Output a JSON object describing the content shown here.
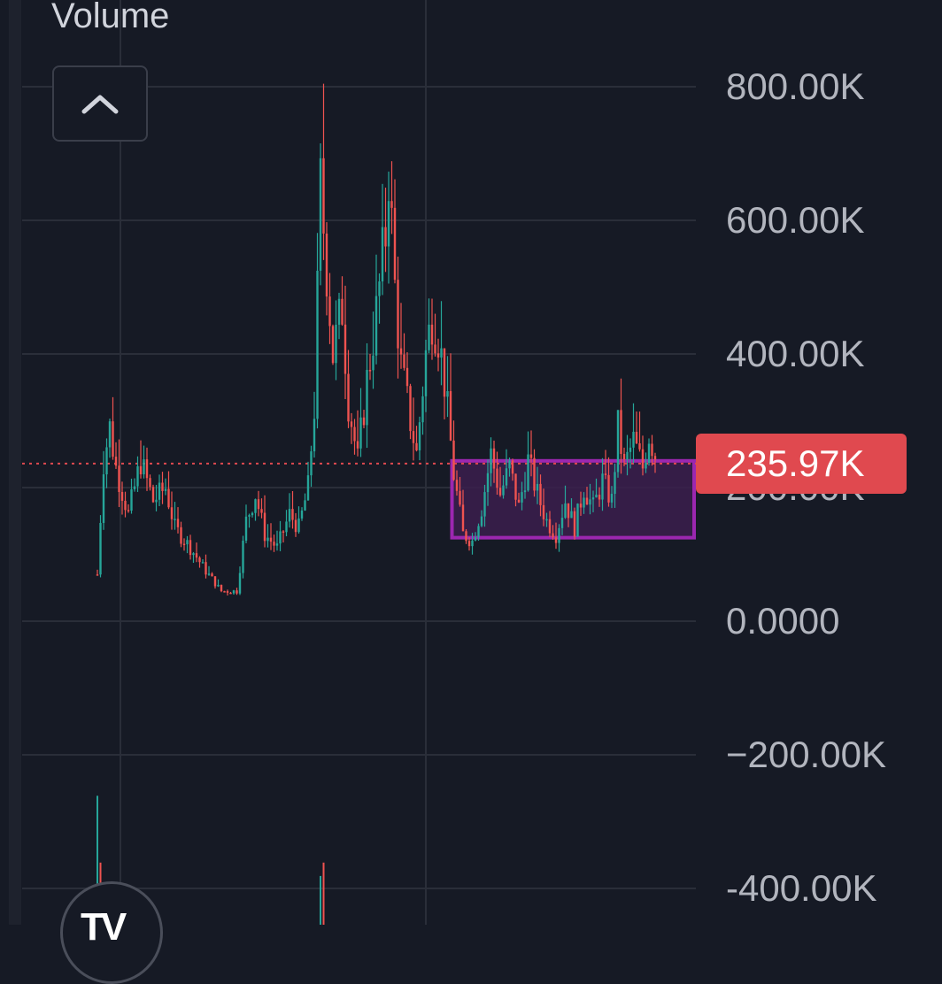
{
  "header": {
    "title": "Volume"
  },
  "controls": {
    "collapse_icon": "chevron-up-icon"
  },
  "last_value_label": "235.97K",
  "logo_text": "TV",
  "colors": {
    "background": "#161a25",
    "grid": "#2a2e39",
    "up": "#26a69a",
    "down": "#ef5350",
    "highlight_fill": "#3b1f4d",
    "highlight_stroke": "#9c27b0",
    "last_value": "#e0494f"
  },
  "chart_data": {
    "type": "candlestick",
    "title": "Volume",
    "ylim": [
      -400000,
      800000
    ],
    "y_ticks": [
      "800.00K",
      "600.00K",
      "400.00K",
      "200.00K",
      "0.0000",
      "−200.00K",
      "-400.00K"
    ],
    "y_tick_values": [
      800000,
      600000,
      400000,
      200000,
      0,
      -200000,
      -400000
    ],
    "last_value": 235970,
    "keypoints": [
      [
        0,
        70000
      ],
      [
        2,
        240000
      ],
      [
        4,
        290000
      ],
      [
        6,
        230000
      ],
      [
        10,
        160000
      ],
      [
        14,
        240000
      ],
      [
        18,
        180000
      ],
      [
        22,
        200000
      ],
      [
        25,
        140000
      ],
      [
        30,
        110000
      ],
      [
        35,
        75000
      ],
      [
        40,
        45000
      ],
      [
        45,
        45000
      ],
      [
        48,
        150000
      ],
      [
        51,
        190000
      ],
      [
        54,
        130000
      ],
      [
        58,
        110000
      ],
      [
        62,
        160000
      ],
      [
        65,
        140000
      ],
      [
        68,
        200000
      ],
      [
        70,
        320000
      ],
      [
        72,
        650000
      ],
      [
        74,
        530000
      ],
      [
        76,
        400000
      ],
      [
        79,
        470000
      ],
      [
        81,
        330000
      ],
      [
        84,
        240000
      ],
      [
        87,
        360000
      ],
      [
        90,
        460000
      ],
      [
        93,
        580000
      ],
      [
        94,
        680000
      ],
      [
        96,
        500000
      ],
      [
        98,
        380000
      ],
      [
        101,
        300000
      ],
      [
        103,
        250000
      ],
      [
        106,
        400000
      ],
      [
        108,
        460000
      ],
      [
        110,
        430000
      ],
      [
        112,
        360000
      ],
      [
        115,
        220000
      ],
      [
        118,
        130000
      ],
      [
        121,
        120000
      ],
      [
        124,
        170000
      ],
      [
        127,
        250000
      ],
      [
        130,
        190000
      ],
      [
        133,
        230000
      ],
      [
        136,
        170000
      ],
      [
        139,
        240000
      ],
      [
        142,
        190000
      ],
      [
        145,
        150000
      ],
      [
        148,
        130000
      ],
      [
        151,
        180000
      ],
      [
        154,
        140000
      ],
      [
        157,
        200000
      ],
      [
        160,
        170000
      ],
      [
        163,
        210000
      ],
      [
        166,
        180000
      ],
      [
        168,
        290000
      ],
      [
        170,
        230000
      ],
      [
        173,
        270000
      ],
      [
        176,
        230000
      ],
      [
        178,
        280000
      ],
      [
        180,
        250000
      ]
    ],
    "bottom_spikes": [
      [
        0,
        140000
      ],
      [
        1,
        40000
      ],
      [
        72,
        20000
      ],
      [
        73,
        40000
      ]
    ],
    "highlight_box": {
      "x0": 115,
      "x1": 180,
      "y0": 125000,
      "y1": 240000
    },
    "grid": true
  }
}
